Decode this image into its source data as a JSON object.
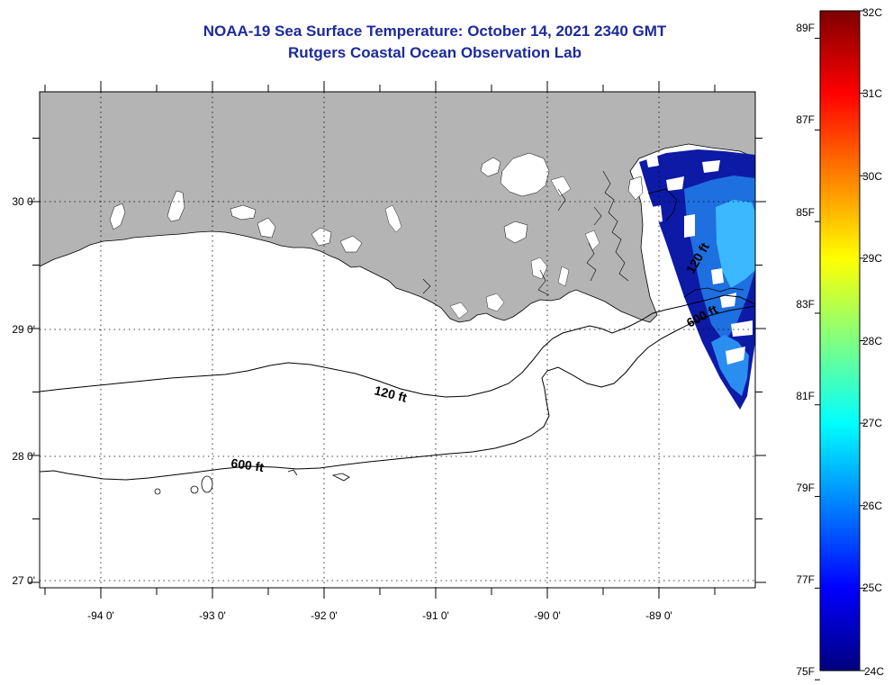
{
  "header": {
    "title": "NOAA-19 Sea Surface Temperature:  October 14, 2021 2340 GMT",
    "subtitle": "Rutgers Coastal Ocean Observation Lab"
  },
  "map": {
    "lon_labels": [
      "-94 0'",
      "-93 0'",
      "-92 0'",
      "-91 0'",
      "-90 0'",
      "-89 0'"
    ],
    "lat_labels": [
      "30 0'",
      "29 0'",
      "28 0'",
      "27 0'"
    ],
    "contour_labels": {
      "c120_west": "120 ft",
      "c600_west": "600 ft",
      "c120_east": "120 ft",
      "c600_east": "600 ft"
    },
    "land_color": "#b4b4b4",
    "water_color": "#ffffff"
  },
  "colorbar": {
    "fahrenheit_labels": [
      "89F",
      "87F",
      "85F",
      "83F",
      "81F",
      "79F",
      "77F",
      "75F"
    ],
    "celsius_labels": [
      "32C",
      "31C",
      "30C",
      "29C",
      "28C",
      "27C",
      "26C",
      "25C",
      "24C"
    ],
    "min_c": 24,
    "max_c": 32,
    "colors": [
      "#00007f",
      "#0000ff",
      "#0080ff",
      "#00ffff",
      "#80ff80",
      "#ffff00",
      "#ff8000",
      "#ff0000",
      "#7f0000"
    ]
  }
}
